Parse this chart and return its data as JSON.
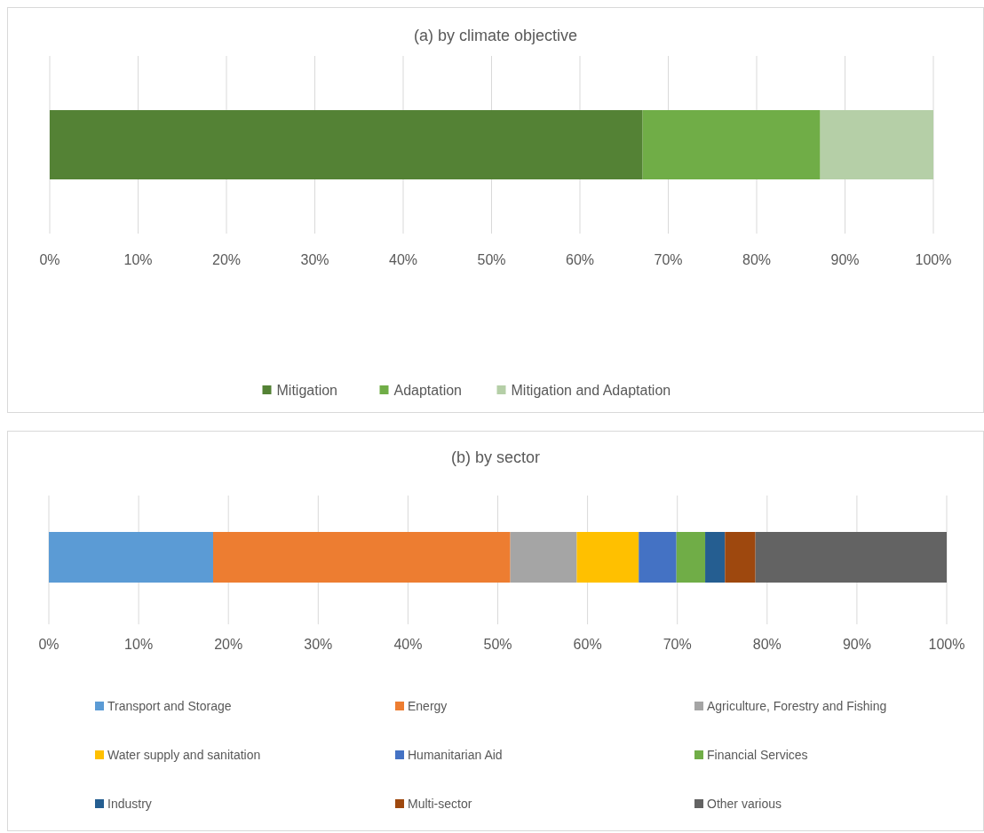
{
  "chart_data": [
    {
      "type": "bar",
      "orientation": "horizontal",
      "stacked": true,
      "title": "(a) by climate objective",
      "categories": [
        null
      ],
      "series": [
        {
          "name": "Mitigation",
          "color": "#548235",
          "values": [
            67.1
          ]
        },
        {
          "name": "Adaptation",
          "color": "#70ad47",
          "values": [
            20.1
          ]
        },
        {
          "name": "Mitigation and Adaptation",
          "color": "#b5cfa7",
          "values": [
            12.8
          ]
        }
      ],
      "xlim": [
        0,
        100
      ],
      "xticks": [
        {
          "value": 0,
          "label": "0%"
        },
        {
          "value": 10,
          "label": "10%"
        },
        {
          "value": 20,
          "label": "20%"
        },
        {
          "value": 30,
          "label": "30%"
        },
        {
          "value": 40,
          "label": "40%"
        },
        {
          "value": 50,
          "label": "50%"
        },
        {
          "value": 60,
          "label": "60%"
        },
        {
          "value": 70,
          "label": "70%"
        },
        {
          "value": 80,
          "label": "80%"
        },
        {
          "value": 90,
          "label": "90%"
        },
        {
          "value": 100,
          "label": "100%"
        }
      ],
      "grid": "x",
      "legend": "bottom",
      "tick_labels": "x"
    },
    {
      "type": "bar",
      "orientation": "horizontal",
      "stacked": true,
      "title": "(b) by sector",
      "categories": [
        null
      ],
      "series": [
        {
          "name": "Transport and Storage",
          "color": "#5b9bd5",
          "values": [
            18.3
          ]
        },
        {
          "name": "Energy",
          "color": "#ed7d31",
          "values": [
            33.1
          ]
        },
        {
          "name": "Agriculture, Forestry and Fishing",
          "color": "#a5a5a5",
          "values": [
            7.4
          ]
        },
        {
          "name": "Water supply and sanitation",
          "color": "#ffc000",
          "values": [
            6.9
          ]
        },
        {
          "name": "Humanitarian Aid",
          "color": "#4472c4",
          "values": [
            4.2
          ]
        },
        {
          "name": "Financial Services",
          "color": "#70ad47",
          "values": [
            3.2
          ]
        },
        {
          "name": "Industry",
          "color": "#255e91",
          "values": [
            2.2
          ]
        },
        {
          "name": "Multi-sector",
          "color": "#9e480e",
          "values": [
            3.4
          ]
        },
        {
          "name": "Other various",
          "color": "#636363",
          "values": [
            21.3
          ]
        }
      ],
      "xlim": [
        0,
        100
      ],
      "xticks": [
        {
          "value": 0,
          "label": "0%"
        },
        {
          "value": 10,
          "label": "10%"
        },
        {
          "value": 20,
          "label": "20%"
        },
        {
          "value": 30,
          "label": "30%"
        },
        {
          "value": 40,
          "label": "40%"
        },
        {
          "value": 50,
          "label": "50%"
        },
        {
          "value": 60,
          "label": "60%"
        },
        {
          "value": 70,
          "label": "70%"
        },
        {
          "value": 80,
          "label": "80%"
        },
        {
          "value": 90,
          "label": "90%"
        },
        {
          "value": 100,
          "label": "100%"
        }
      ],
      "grid": "x",
      "legend": "bottom",
      "tick_labels": "x"
    }
  ]
}
